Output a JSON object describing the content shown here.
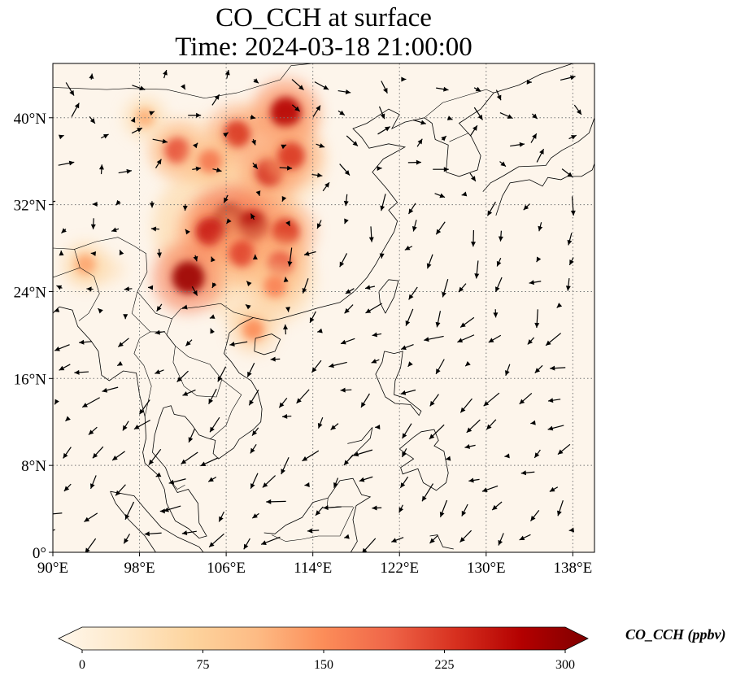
{
  "title": {
    "line1": "CO_CCH at surface",
    "line2": "Time: 2024-03-18 21:00:00"
  },
  "map": {
    "lon_range": [
      90,
      140
    ],
    "lat_range": [
      0,
      45
    ],
    "lon_ticks": [
      {
        "value": 90,
        "label": "90°E"
      },
      {
        "value": 98,
        "label": "98°E"
      },
      {
        "value": 106,
        "label": "106°E"
      },
      {
        "value": 114,
        "label": "114°E"
      },
      {
        "value": 122,
        "label": "122°E"
      },
      {
        "value": 130,
        "label": "130°E"
      },
      {
        "value": 138,
        "label": "138°E"
      }
    ],
    "lat_ticks": [
      {
        "value": 0,
        "label": "0°"
      },
      {
        "value": 8,
        "label": "8°N"
      },
      {
        "value": 16,
        "label": "16°N"
      },
      {
        "value": 24,
        "label": "24°N"
      },
      {
        "value": 32,
        "label": "32°N"
      },
      {
        "value": 40,
        "label": "40°N"
      }
    ],
    "gridlines": true,
    "background_color": "#fdf5eb",
    "colormap": "OrRd",
    "wind_vectors": true
  },
  "colorbar": {
    "title": "CO_CCH (ppbv)",
    "min": 0,
    "max": 300,
    "ticks": [
      {
        "value": 0,
        "label": "0"
      },
      {
        "value": 75,
        "label": "75"
      },
      {
        "value": 150,
        "label": "150"
      },
      {
        "value": 225,
        "label": "225"
      },
      {
        "value": 300,
        "label": "300"
      }
    ],
    "extend": "both",
    "colors": [
      "#fff7ec",
      "#fee8c8",
      "#fdd49e",
      "#fdbb84",
      "#fc8d59",
      "#ef6548",
      "#d7301f",
      "#b30000",
      "#7f0000"
    ]
  },
  "chart_data": {
    "type": "heatmap",
    "title": "CO_CCH at surface",
    "subtitle": "Time: 2024-03-18 21:00:00",
    "xlabel": "",
    "ylabel": "",
    "xlim": [
      90,
      140
    ],
    "ylim": [
      0,
      45
    ],
    "value_range": [
      0,
      300
    ],
    "units": "ppbv",
    "plumes": [
      {
        "lon": 106.3,
        "lat": 30.5,
        "value": 300
      },
      {
        "lon": 108.5,
        "lat": 30.0,
        "value": 270
      },
      {
        "lon": 104.5,
        "lat": 29.5,
        "value": 240
      },
      {
        "lon": 102.5,
        "lat": 25.3,
        "value": 280
      },
      {
        "lon": 107.5,
        "lat": 27.5,
        "value": 210
      },
      {
        "lon": 111.5,
        "lat": 29.5,
        "value": 220
      },
      {
        "lon": 111.0,
        "lat": 26.5,
        "value": 200
      },
      {
        "lon": 110.5,
        "lat": 24.5,
        "value": 160
      },
      {
        "lon": 107.0,
        "lat": 38.5,
        "value": 220
      },
      {
        "lon": 111.5,
        "lat": 40.5,
        "value": 260
      },
      {
        "lon": 110.0,
        "lat": 35.0,
        "value": 230
      },
      {
        "lon": 112.0,
        "lat": 36.5,
        "value": 220
      },
      {
        "lon": 101.5,
        "lat": 37.0,
        "value": 200
      },
      {
        "lon": 104.5,
        "lat": 36.0,
        "value": 170
      },
      {
        "lon": 108.5,
        "lat": 20.5,
        "value": 150
      },
      {
        "lon": 93.0,
        "lat": 26.5,
        "value": 130
      },
      {
        "lon": 98.5,
        "lat": 40.0,
        "value": 120
      }
    ]
  }
}
